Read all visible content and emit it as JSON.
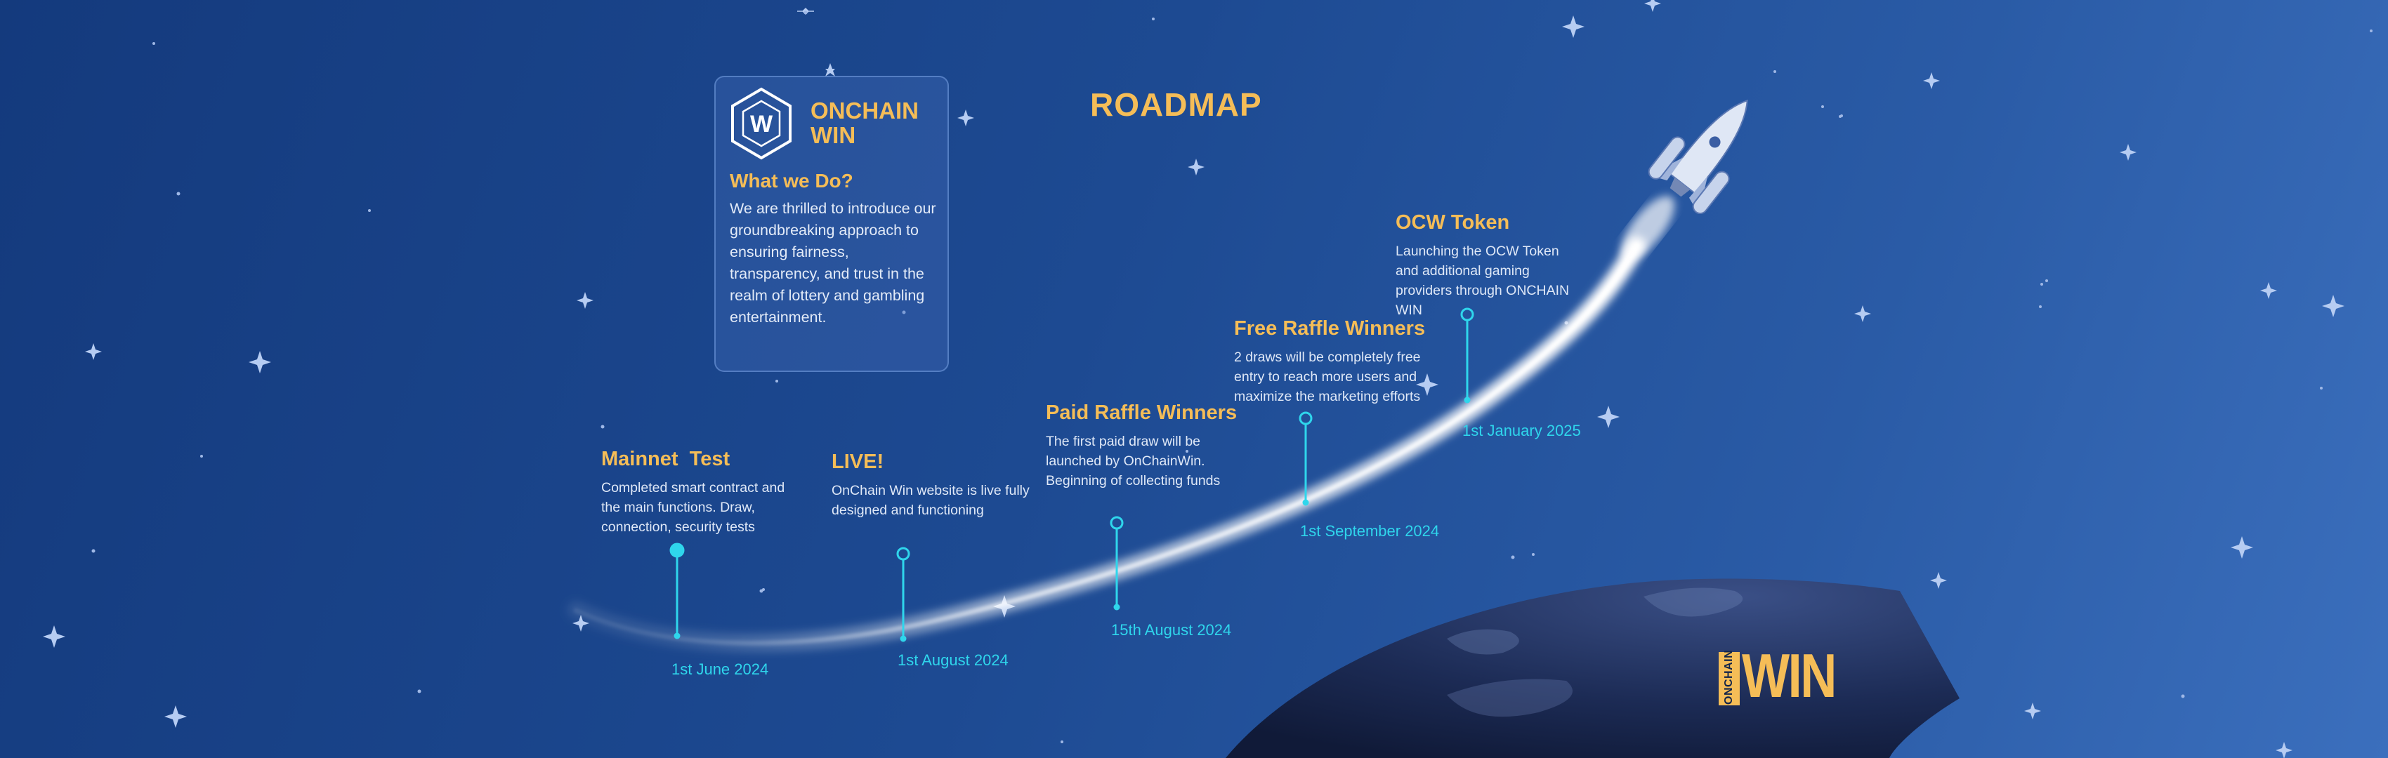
{
  "page": {
    "title": "ROADMAP"
  },
  "card": {
    "brand_line1": "ONCHAIN",
    "brand_line2": "WIN",
    "logo_letter": "W",
    "heading": "What we Do?",
    "body": "We are thrilled to introduce our groundbreaking approach to ensuring fairness, transparency, and trust in the realm of lottery and gambling entertainment."
  },
  "milestones": [
    {
      "title": "Mainnet  Test",
      "text": "Completed smart contract and the main functions. Draw, connection, security tests",
      "date": "1st June 2024",
      "status": "completed"
    },
    {
      "title": "LIVE!",
      "text": "OnChain Win website is live fully designed and functioning",
      "date": "1st August 2024",
      "status": "upcoming"
    },
    {
      "title": "Paid Raffle Winners",
      "text": "The first paid draw will be launched by OnChainWin. Beginning of collecting funds",
      "date": "15th August 2024",
      "status": "upcoming"
    },
    {
      "title": "Free Raffle Winners",
      "text": "2 draws will be completely free entry to reach more users and maximize the marketing efforts",
      "date": "1st September 2024",
      "status": "upcoming"
    },
    {
      "title": "OCW Token",
      "text": "Launching the OCW Token and additional gaming providers through ONCHAIN WIN",
      "date": "1st January 2025",
      "status": "upcoming"
    }
  ],
  "footer_logo": {
    "small": "ONCHAIN",
    "big": "WIN"
  },
  "colors": {
    "accent": "#f5bd57",
    "timeline": "#2fd6ec",
    "background": "#1d4a92"
  },
  "icons": [
    "hexagon-logo-icon",
    "rocket-icon",
    "planet-icon",
    "star-icon"
  ]
}
